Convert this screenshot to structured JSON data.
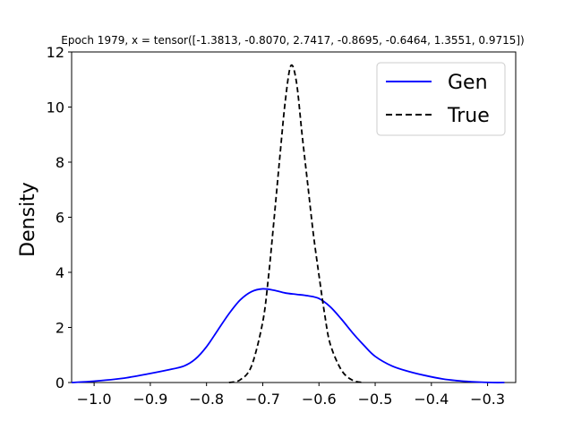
{
  "chart_data": {
    "type": "line",
    "title": "Epoch 1979, x = tensor([-1.3813, -0.8070,  2.7417, -0.8695, -0.6464,  1.3551,  0.9715])",
    "xlabel": "",
    "ylabel": "Density",
    "xlim": [
      -1.04,
      -0.25
    ],
    "ylim": [
      0,
      12
    ],
    "xticks": [
      -1.0,
      -0.9,
      -0.8,
      -0.7,
      -0.6,
      -0.5,
      -0.4,
      -0.3
    ],
    "xtick_labels": [
      "−1.0",
      "−0.9",
      "−0.8",
      "−0.7",
      "−0.6",
      "−0.5",
      "−0.4",
      "−0.3"
    ],
    "yticks": [
      0,
      2,
      4,
      6,
      8,
      10,
      12
    ],
    "ytick_labels": [
      "0",
      "2",
      "4",
      "6",
      "8",
      "10",
      "12"
    ],
    "grid": false,
    "legend_position": "top-right",
    "series": [
      {
        "name": "Gen",
        "color": "#0000ff",
        "style": "solid",
        "x": [
          -1.04,
          -1.0,
          -0.95,
          -0.9,
          -0.87,
          -0.84,
          -0.82,
          -0.8,
          -0.78,
          -0.76,
          -0.74,
          -0.72,
          -0.7,
          -0.68,
          -0.66,
          -0.64,
          -0.62,
          -0.6,
          -0.58,
          -0.56,
          -0.54,
          -0.52,
          -0.5,
          -0.47,
          -0.44,
          -0.41,
          -0.38,
          -0.35,
          -0.32,
          -0.29,
          -0.27
        ],
        "y": [
          0.0,
          0.05,
          0.15,
          0.33,
          0.45,
          0.6,
          0.85,
          1.3,
          1.9,
          2.5,
          3.0,
          3.3,
          3.4,
          3.35,
          3.25,
          3.2,
          3.15,
          3.05,
          2.75,
          2.3,
          1.8,
          1.35,
          0.95,
          0.6,
          0.4,
          0.25,
          0.13,
          0.06,
          0.02,
          0.0,
          0.0
        ]
      },
      {
        "name": "True",
        "color": "#000000",
        "style": "dashed",
        "x": [
          -0.76,
          -0.74,
          -0.72,
          -0.7,
          -0.69,
          -0.68,
          -0.67,
          -0.66,
          -0.65,
          -0.64,
          -0.63,
          -0.62,
          -0.61,
          -0.6,
          -0.59,
          -0.58,
          -0.56,
          -0.54,
          -0.52
        ],
        "y": [
          0.0,
          0.1,
          0.6,
          2.2,
          3.8,
          5.9,
          8.1,
          10.2,
          11.5,
          10.9,
          9.0,
          7.2,
          5.4,
          3.9,
          2.5,
          1.4,
          0.45,
          0.08,
          0.0
        ]
      }
    ]
  }
}
